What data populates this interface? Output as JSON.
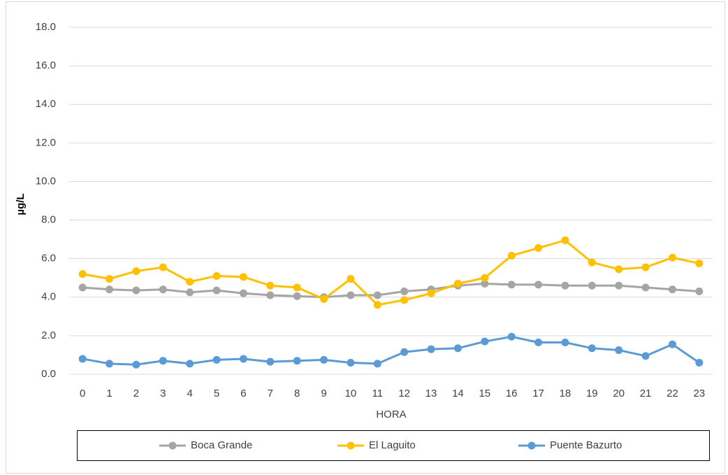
{
  "chart_data": {
    "type": "line",
    "x_label": "HORA",
    "y_label": "µg/L",
    "categories": [
      "0",
      "1",
      "2",
      "3",
      "4",
      "5",
      "6",
      "7",
      "8",
      "9",
      "10",
      "11",
      "12",
      "13",
      "14",
      "15",
      "16",
      "17",
      "18",
      "19",
      "20",
      "21",
      "22",
      "23"
    ],
    "series": [
      {
        "name": "Boca Grande",
        "color": "#a5a5a5",
        "values": [
          4.5,
          4.4,
          4.35,
          4.4,
          4.25,
          4.35,
          4.2,
          4.1,
          4.05,
          4.0,
          4.1,
          4.1,
          4.3,
          4.4,
          4.6,
          4.7,
          4.65,
          4.65,
          4.6,
          4.6,
          4.6,
          4.5,
          4.4,
          4.3
        ]
      },
      {
        "name": "El Laguito",
        "color": "#ffc000",
        "values": [
          5.2,
          4.95,
          5.35,
          5.55,
          4.8,
          5.1,
          5.05,
          4.6,
          4.5,
          3.9,
          4.95,
          3.6,
          3.85,
          4.2,
          4.7,
          5.0,
          6.15,
          6.55,
          6.95,
          5.8,
          5.45,
          5.55,
          6.05,
          5.75
        ]
      },
      {
        "name": "Puente Bazurto",
        "color": "#5b9bd5",
        "values": [
          0.8,
          0.55,
          0.5,
          0.7,
          0.55,
          0.75,
          0.8,
          0.65,
          0.7,
          0.75,
          0.6,
          0.55,
          1.15,
          1.3,
          1.35,
          1.7,
          1.95,
          1.65,
          1.65,
          1.35,
          1.25,
          0.95,
          1.55,
          0.6
        ]
      }
    ],
    "ylim": [
      0,
      18
    ],
    "yticks": [
      {
        "value": 0,
        "label": "0.0"
      },
      {
        "value": 2,
        "label": "2.0"
      },
      {
        "value": 4,
        "label": "4.0"
      },
      {
        "value": 6,
        "label": "6.0"
      },
      {
        "value": 8,
        "label": "8.0"
      },
      {
        "value": 10,
        "label": "10.0"
      },
      {
        "value": 12,
        "label": "12.0"
      },
      {
        "value": 14,
        "label": "14.0"
      },
      {
        "value": 16,
        "label": "16.0"
      },
      {
        "value": 18,
        "label": "18.0"
      }
    ],
    "grid": true,
    "legend": "bottom"
  }
}
